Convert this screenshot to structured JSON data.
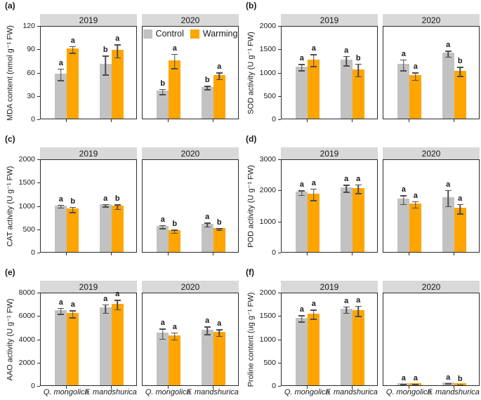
{
  "figure": {
    "colors": {
      "control": "#c2c2c2",
      "warming": "#ffa500",
      "strip_bg": "#d9d9d9",
      "axis": "#2b2b2b",
      "error_bar": "#4d4d4d"
    },
    "legend": {
      "items": [
        {
          "label": "Control",
          "key": "control"
        },
        {
          "label": "Warming",
          "key": "warming"
        }
      ]
    },
    "x_categories": [
      "Q. mongolica",
      "F. mandshurica"
    ]
  },
  "chart_data": [
    {
      "type": "bar",
      "panel": "(a)",
      "ylabel": "MDA content (nmol g⁻¹ FW)",
      "ylim": [
        0,
        120
      ],
      "yticks": [
        0,
        30,
        60,
        90,
        120
      ],
      "show_x_labels": false,
      "has_legend": true,
      "facets": [
        {
          "label": "2019",
          "groups": [
            {
              "category": "Q. mongolica",
              "bars": [
                {
                  "series": "Control",
                  "value": 58,
                  "error": 8,
                  "letter": "a"
                },
                {
                  "series": "Warming",
                  "value": 90,
                  "error": 5,
                  "letter": "a"
                }
              ]
            },
            {
              "category": "F. mandshurica",
              "bars": [
                {
                  "series": "Control",
                  "value": 70,
                  "error": 13,
                  "letter": "b"
                },
                {
                  "series": "Warming",
                  "value": 88,
                  "error": 9,
                  "letter": "a"
                }
              ]
            }
          ]
        },
        {
          "label": "2020",
          "groups": [
            {
              "category": "Q. mongolica",
              "bars": [
                {
                  "series": "Control",
                  "value": 36,
                  "error": 4,
                  "letter": "b"
                },
                {
                  "series": "Warming",
                  "value": 75,
                  "error": 10,
                  "letter": "a"
                }
              ]
            },
            {
              "category": "F. mandshurica",
              "bars": [
                {
                  "series": "Control",
                  "value": 41,
                  "error": 3,
                  "letter": "b"
                },
                {
                  "series": "Warming",
                  "value": 56,
                  "error": 5,
                  "letter": "a"
                }
              ]
            }
          ]
        }
      ]
    },
    {
      "type": "bar",
      "panel": "(b)",
      "ylabel": "SOD activity (U g⁻¹ FW)",
      "ylim": [
        0,
        2000
      ],
      "yticks": [
        0,
        500,
        1000,
        1500,
        2000
      ],
      "show_x_labels": false,
      "has_legend": false,
      "facets": [
        {
          "label": "2019",
          "groups": [
            {
              "category": "Q. mongolica",
              "bars": [
                {
                  "series": "Control",
                  "value": 1120,
                  "error": 80,
                  "letter": "a"
                },
                {
                  "series": "Warming",
                  "value": 1270,
                  "error": 140,
                  "letter": "a"
                }
              ]
            },
            {
              "category": "F. mandshurica",
              "bars": [
                {
                  "series": "Control",
                  "value": 1260,
                  "error": 110,
                  "letter": "a"
                },
                {
                  "series": "Warming",
                  "value": 1060,
                  "error": 150,
                  "letter": "b"
                }
              ]
            }
          ]
        },
        {
          "label": "2020",
          "groups": [
            {
              "category": "Q. mongolica",
              "bars": [
                {
                  "series": "Control",
                  "value": 1170,
                  "error": 130,
                  "letter": "a"
                },
                {
                  "series": "Warming",
                  "value": 930,
                  "error": 90,
                  "letter": "a"
                }
              ]
            },
            {
              "category": "F. mandshurica",
              "bars": [
                {
                  "series": "Control",
                  "value": 1410,
                  "error": 75,
                  "letter": "a"
                },
                {
                  "series": "Warming",
                  "value": 1030,
                  "error": 110,
                  "letter": "b"
                }
              ]
            }
          ]
        }
      ]
    },
    {
      "type": "bar",
      "panel": "(c)",
      "ylabel": "CAT activity (U g⁻¹ FW)",
      "ylim": [
        0,
        2000
      ],
      "yticks": [
        0,
        500,
        1000,
        1500,
        2000
      ],
      "show_x_labels": false,
      "has_legend": false,
      "facets": [
        {
          "label": "2019",
          "groups": [
            {
              "category": "Q. mongolica",
              "bars": [
                {
                  "series": "Control",
                  "value": 1000,
                  "error": 40,
                  "letter": "a"
                },
                {
                  "series": "Warming",
                  "value": 930,
                  "error": 70,
                  "letter": "b"
                }
              ]
            },
            {
              "category": "F. mandshurica",
              "bars": [
                {
                  "series": "Control",
                  "value": 1020,
                  "error": 40,
                  "letter": "a"
                },
                {
                  "series": "Warming",
                  "value": 990,
                  "error": 60,
                  "letter": "b"
                }
              ]
            }
          ]
        },
        {
          "label": "2020",
          "groups": [
            {
              "category": "Q. mongolica",
              "bars": [
                {
                  "series": "Control",
                  "value": 560,
                  "error": 45,
                  "letter": "a"
                },
                {
                  "series": "Warming",
                  "value": 465,
                  "error": 45,
                  "letter": "b"
                }
              ]
            },
            {
              "category": "F. mandshurica",
              "bars": [
                {
                  "series": "Control",
                  "value": 605,
                  "error": 55,
                  "letter": "a"
                },
                {
                  "series": "Warming",
                  "value": 505,
                  "error": 30,
                  "letter": "b"
                }
              ]
            }
          ]
        }
      ]
    },
    {
      "type": "bar",
      "panel": "(d)",
      "ylabel": "POD activity (U g⁻¹ FW)",
      "ylim": [
        0,
        3000
      ],
      "yticks": [
        0,
        1000,
        2000,
        3000
      ],
      "show_x_labels": false,
      "has_legend": false,
      "facets": [
        {
          "label": "2019",
          "groups": [
            {
              "category": "Q. mongolica",
              "bars": [
                {
                  "series": "Control",
                  "value": 1930,
                  "error": 90,
                  "letter": "a"
                },
                {
                  "series": "Warming",
                  "value": 1880,
                  "error": 200,
                  "letter": "a"
                }
              ]
            },
            {
              "category": "F. mandshurica",
              "bars": [
                {
                  "series": "Control",
                  "value": 2070,
                  "error": 130,
                  "letter": "a"
                },
                {
                  "series": "Warming",
                  "value": 2060,
                  "error": 160,
                  "letter": "a"
                }
              ]
            }
          ]
        },
        {
          "label": "2020",
          "groups": [
            {
              "category": "Q. mongolica",
              "bars": [
                {
                  "series": "Control",
                  "value": 1710,
                  "error": 160,
                  "letter": "a"
                },
                {
                  "series": "Warming",
                  "value": 1560,
                  "error": 120,
                  "letter": "a"
                }
              ]
            },
            {
              "category": "F. mandshurica",
              "bars": [
                {
                  "series": "Control",
                  "value": 1760,
                  "error": 280,
                  "letter": "a"
                },
                {
                  "series": "Warming",
                  "value": 1420,
                  "error": 170,
                  "letter": "a"
                }
              ]
            }
          ]
        }
      ]
    },
    {
      "type": "bar",
      "panel": "(e)",
      "ylabel": "AAO activity (U g⁻¹ FW)",
      "ylim": [
        0,
        8000
      ],
      "yticks": [
        0,
        2000,
        4000,
        6000,
        8000
      ],
      "show_x_labels": true,
      "has_legend": false,
      "facets": [
        {
          "label": "2019",
          "groups": [
            {
              "category": "Q. mongolica",
              "bars": [
                {
                  "series": "Control",
                  "value": 6450,
                  "error": 300,
                  "letter": "a"
                },
                {
                  "series": "Warming",
                  "value": 6200,
                  "error": 350,
                  "letter": "a"
                }
              ]
            },
            {
              "category": "F. mandshurica",
              "bars": [
                {
                  "series": "Control",
                  "value": 6650,
                  "error": 400,
                  "letter": "a"
                },
                {
                  "series": "Warming",
                  "value": 7000,
                  "error": 450,
                  "letter": "a"
                }
              ]
            }
          ]
        },
        {
          "label": "2020",
          "groups": [
            {
              "category": "Q. mongolica",
              "bars": [
                {
                  "series": "Control",
                  "value": 4500,
                  "error": 480,
                  "letter": "a"
                },
                {
                  "series": "Warming",
                  "value": 4300,
                  "error": 350,
                  "letter": "a"
                }
              ]
            },
            {
              "category": "F. mandshurica",
              "bars": [
                {
                  "series": "Control",
                  "value": 4780,
                  "error": 380,
                  "letter": "a"
                },
                {
                  "series": "Warming",
                  "value": 4600,
                  "error": 330,
                  "letter": "a"
                }
              ]
            }
          ]
        }
      ]
    },
    {
      "type": "bar",
      "panel": "(f)",
      "ylabel": "Proline content (ug g⁻¹ FW)",
      "ylim": [
        0,
        2000
      ],
      "yticks": [
        0,
        500,
        1000,
        1500,
        2000
      ],
      "show_x_labels": true,
      "has_legend": false,
      "facets": [
        {
          "label": "2019",
          "groups": [
            {
              "category": "Q. mongolica",
              "bars": [
                {
                  "series": "Control",
                  "value": 1450,
                  "error": 80,
                  "letter": "a"
                },
                {
                  "series": "Warming",
                  "value": 1540,
                  "error": 110,
                  "letter": "a"
                }
              ]
            },
            {
              "category": "F. mandshurica",
              "bars": [
                {
                  "series": "Control",
                  "value": 1640,
                  "error": 80,
                  "letter": "a"
                },
                {
                  "series": "Warming",
                  "value": 1610,
                  "error": 120,
                  "letter": "a"
                }
              ]
            }
          ]
        },
        {
          "label": "2020",
          "groups": [
            {
              "category": "Q. mongolica",
              "bars": [
                {
                  "series": "Control",
                  "value": 50,
                  "error": 10,
                  "letter": "a"
                },
                {
                  "series": "Warming",
                  "value": 50,
                  "error": 10,
                  "letter": "a"
                }
              ]
            },
            {
              "category": "F. mandshurica",
              "bars": [
                {
                  "series": "Control",
                  "value": 60,
                  "error": 15,
                  "letter": "a"
                },
                {
                  "series": "Warming",
                  "value": 40,
                  "error": 10,
                  "letter": "b"
                }
              ]
            }
          ]
        }
      ]
    }
  ]
}
